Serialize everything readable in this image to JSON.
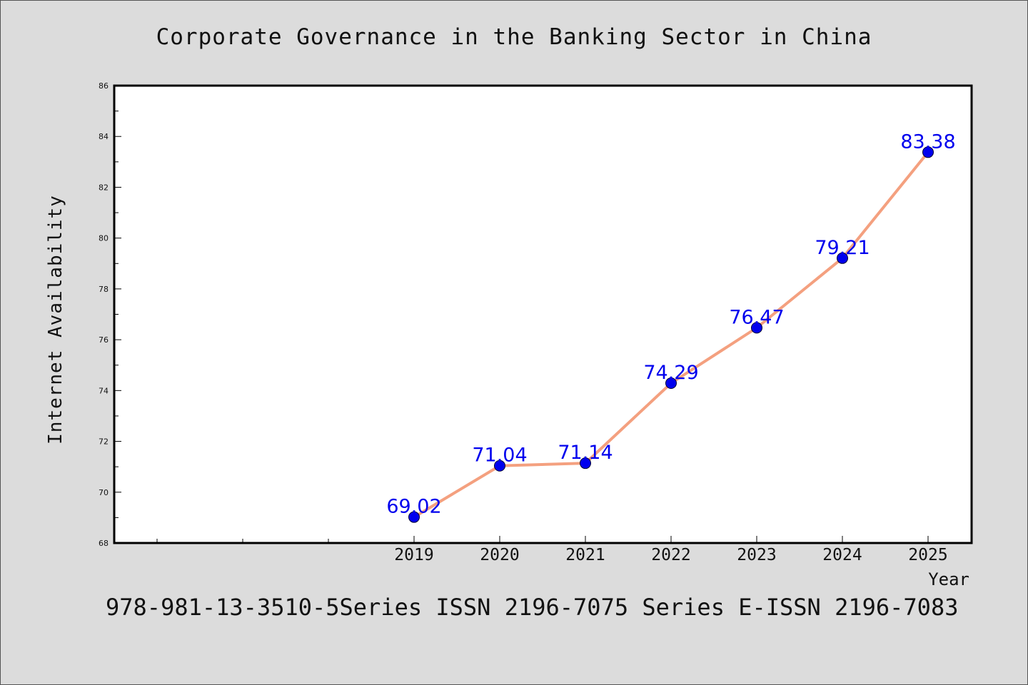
{
  "chart_data": {
    "type": "line",
    "title": "Corporate Governance in the Banking Sector in China",
    "xlabel": "Year",
    "ylabel": "Internet Availability",
    "categories": [
      "2019",
      "2020",
      "2021",
      "2022",
      "2023",
      "2024",
      "2025"
    ],
    "series": [
      {
        "values": [
          69.02,
          71.04,
          71.14,
          74.29,
          76.47,
          79.21,
          83.38
        ]
      }
    ],
    "data_labels": [
      "69.02",
      "71.04",
      "71.14",
      "74.29",
      "76.47",
      "79.21",
      "83.38"
    ],
    "ylim": [
      68,
      86
    ],
    "yticks": [
      "68",
      "70",
      "72",
      "74",
      "76",
      "78",
      "80",
      "82",
      "84",
      "86"
    ],
    "grid": false,
    "line_color": "#f4a07f",
    "marker_color": "#0000ee",
    "label_color": "#0000ee"
  },
  "footnote": "978-981-13-3510-5Series ISSN 2196-7075 Series E-ISSN 2196-7083"
}
